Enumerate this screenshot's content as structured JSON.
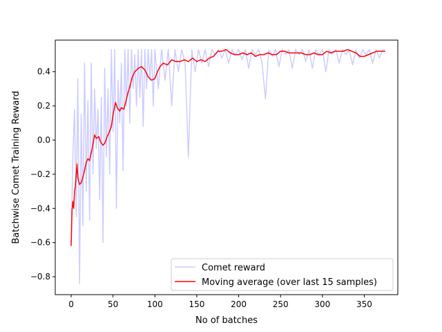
{
  "chart_data": {
    "type": "line",
    "title": "",
    "xlabel": "No of batches",
    "ylabel": "Batchwise Comet Training Reward",
    "xlim": [
      -19,
      390
    ],
    "ylim": [
      -0.905,
      0.585
    ],
    "xticks": [
      0,
      50,
      100,
      150,
      200,
      250,
      300,
      350
    ],
    "yticks": [
      -0.8,
      -0.6,
      -0.4,
      -0.2,
      0.0,
      0.2,
      0.4
    ],
    "ytick_labels": [
      "−0.8",
      "−0.6",
      "−0.4",
      "−0.2",
      "0.0",
      "0.2",
      "0.4"
    ],
    "grid": false,
    "legend_placement": "lower-right",
    "series": [
      {
        "name": "Comet reward",
        "color": "#ccccff",
        "points": [
          [
            0,
            -0.6
          ],
          [
            2,
            -0.1
          ],
          [
            4,
            0.18
          ],
          [
            6,
            -0.45
          ],
          [
            8,
            0.36
          ],
          [
            10,
            -0.84
          ],
          [
            12,
            0.15
          ],
          [
            14,
            -0.5
          ],
          [
            16,
            0.45
          ],
          [
            18,
            -0.3
          ],
          [
            20,
            0.23
          ],
          [
            22,
            -0.47
          ],
          [
            24,
            0.45
          ],
          [
            26,
            -0.2
          ],
          [
            28,
            0.3
          ],
          [
            30,
            -0.05
          ],
          [
            32,
            0.18
          ],
          [
            34,
            -0.35
          ],
          [
            36,
            0.25
          ],
          [
            38,
            -0.6
          ],
          [
            40,
            0.42
          ],
          [
            42,
            -0.1
          ],
          [
            44,
            0.3
          ],
          [
            46,
            -0.2
          ],
          [
            48,
            0.53
          ],
          [
            50,
            0.05
          ],
          [
            52,
            0.53
          ],
          [
            54,
            -0.4
          ],
          [
            56,
            0.35
          ],
          [
            58,
            0.1
          ],
          [
            60,
            0.45
          ],
          [
            62,
            -0.18
          ],
          [
            64,
            0.53
          ],
          [
            66,
            0.2
          ],
          [
            68,
            0.53
          ],
          [
            70,
            0.1
          ],
          [
            72,
            0.53
          ],
          [
            74,
            0.3
          ],
          [
            76,
            0.5
          ],
          [
            78,
            0.2
          ],
          [
            80,
            0.53
          ],
          [
            82,
            0.25
          ],
          [
            84,
            0.53
          ],
          [
            86,
            0.08
          ],
          [
            88,
            0.53
          ],
          [
            90,
            0.3
          ],
          [
            92,
            0.53
          ],
          [
            94,
            0.35
          ],
          [
            96,
            0.53
          ],
          [
            98,
            0.2
          ],
          [
            100,
            0.53
          ],
          [
            104,
            0.3
          ],
          [
            108,
            0.53
          ],
          [
            112,
            0.35
          ],
          [
            116,
            0.53
          ],
          [
            120,
            0.2
          ],
          [
            124,
            0.53
          ],
          [
            128,
            0.4
          ],
          [
            132,
            0.53
          ],
          [
            136,
            0.45
          ],
          [
            140,
            -0.1
          ],
          [
            144,
            0.53
          ],
          [
            148,
            0.4
          ],
          [
            152,
            0.53
          ],
          [
            156,
            0.45
          ],
          [
            160,
            0.53
          ],
          [
            164,
            0.43
          ],
          [
            168,
            0.53
          ],
          [
            172,
            0.5
          ],
          [
            176,
            0.53
          ],
          [
            180,
            0.48
          ],
          [
            184,
            0.53
          ],
          [
            188,
            0.45
          ],
          [
            192,
            0.53
          ],
          [
            196,
            0.5
          ],
          [
            200,
            0.53
          ],
          [
            204,
            0.47
          ],
          [
            208,
            0.53
          ],
          [
            212,
            0.42
          ],
          [
            216,
            0.53
          ],
          [
            220,
            0.5
          ],
          [
            224,
            0.53
          ],
          [
            228,
            0.45
          ],
          [
            232,
            0.24
          ],
          [
            236,
            0.53
          ],
          [
            240,
            0.49
          ],
          [
            244,
            0.53
          ],
          [
            248,
            0.43
          ],
          [
            252,
            0.53
          ],
          [
            256,
            0.5
          ],
          [
            260,
            0.53
          ],
          [
            264,
            0.42
          ],
          [
            268,
            0.53
          ],
          [
            272,
            0.5
          ],
          [
            276,
            0.53
          ],
          [
            280,
            0.46
          ],
          [
            284,
            0.53
          ],
          [
            288,
            0.42
          ],
          [
            292,
            0.53
          ],
          [
            296,
            0.5
          ],
          [
            300,
            0.53
          ],
          [
            304,
            0.4
          ],
          [
            308,
            0.53
          ],
          [
            312,
            0.5
          ],
          [
            316,
            0.53
          ],
          [
            320,
            0.45
          ],
          [
            324,
            0.53
          ],
          [
            328,
            0.5
          ],
          [
            332,
            0.53
          ],
          [
            336,
            0.44
          ],
          [
            340,
            0.53
          ],
          [
            344,
            0.48
          ],
          [
            348,
            0.53
          ],
          [
            352,
            0.5
          ],
          [
            356,
            0.53
          ],
          [
            360,
            0.45
          ],
          [
            364,
            0.53
          ],
          [
            368,
            0.48
          ],
          [
            372,
            0.53
          ],
          [
            375,
            0.53
          ]
        ]
      },
      {
        "name": "Moving average (over last 15 samples)",
        "color": "#ff0000",
        "points": [
          [
            0,
            -0.62
          ],
          [
            1,
            -0.41
          ],
          [
            2,
            -0.36
          ],
          [
            3,
            -0.4
          ],
          [
            4,
            -0.3
          ],
          [
            5,
            -0.27
          ],
          [
            7,
            -0.14
          ],
          [
            8,
            -0.22
          ],
          [
            10,
            -0.26
          ],
          [
            12,
            -0.25
          ],
          [
            15,
            -0.2
          ],
          [
            18,
            -0.13
          ],
          [
            20,
            -0.11
          ],
          [
            22,
            -0.12
          ],
          [
            25,
            -0.05
          ],
          [
            28,
            0.03
          ],
          [
            30,
            0.01
          ],
          [
            33,
            0.02
          ],
          [
            35,
            -0.01
          ],
          [
            38,
            -0.03
          ],
          [
            40,
            -0.02
          ],
          [
            43,
            0.02
          ],
          [
            45,
            0.04
          ],
          [
            48,
            0.08
          ],
          [
            50,
            0.15
          ],
          [
            53,
            0.22
          ],
          [
            55,
            0.19
          ],
          [
            58,
            0.17
          ],
          [
            60,
            0.19
          ],
          [
            63,
            0.18
          ],
          [
            65,
            0.22
          ],
          [
            68,
            0.28
          ],
          [
            70,
            0.31
          ],
          [
            73,
            0.37
          ],
          [
            76,
            0.4
          ],
          [
            80,
            0.42
          ],
          [
            84,
            0.43
          ],
          [
            88,
            0.41
          ],
          [
            92,
            0.37
          ],
          [
            96,
            0.35
          ],
          [
            100,
            0.36
          ],
          [
            103,
            0.4
          ],
          [
            106,
            0.43
          ],
          [
            110,
            0.45
          ],
          [
            115,
            0.44
          ],
          [
            120,
            0.47
          ],
          [
            125,
            0.46
          ],
          [
            130,
            0.46
          ],
          [
            135,
            0.47
          ],
          [
            140,
            0.46
          ],
          [
            145,
            0.48
          ],
          [
            150,
            0.46
          ],
          [
            155,
            0.47
          ],
          [
            160,
            0.46
          ],
          [
            165,
            0.48
          ],
          [
            170,
            0.49
          ],
          [
            175,
            0.52
          ],
          [
            180,
            0.52
          ],
          [
            185,
            0.53
          ],
          [
            190,
            0.51
          ],
          [
            195,
            0.5
          ],
          [
            200,
            0.5
          ],
          [
            205,
            0.51
          ],
          [
            210,
            0.5
          ],
          [
            215,
            0.51
          ],
          [
            220,
            0.49
          ],
          [
            225,
            0.5
          ],
          [
            230,
            0.5
          ],
          [
            235,
            0.51
          ],
          [
            240,
            0.5
          ],
          [
            245,
            0.5
          ],
          [
            250,
            0.52
          ],
          [
            255,
            0.52
          ],
          [
            260,
            0.51
          ],
          [
            265,
            0.51
          ],
          [
            270,
            0.51
          ],
          [
            275,
            0.51
          ],
          [
            280,
            0.5
          ],
          [
            285,
            0.5
          ],
          [
            290,
            0.51
          ],
          [
            295,
            0.5
          ],
          [
            300,
            0.5
          ],
          [
            305,
            0.52
          ],
          [
            310,
            0.51
          ],
          [
            315,
            0.52
          ],
          [
            320,
            0.52
          ],
          [
            325,
            0.52
          ],
          [
            330,
            0.53
          ],
          [
            335,
            0.52
          ],
          [
            340,
            0.51
          ],
          [
            345,
            0.49
          ],
          [
            350,
            0.49
          ],
          [
            355,
            0.5
          ],
          [
            360,
            0.51
          ],
          [
            365,
            0.52
          ],
          [
            370,
            0.52
          ],
          [
            375,
            0.52
          ]
        ]
      }
    ]
  }
}
